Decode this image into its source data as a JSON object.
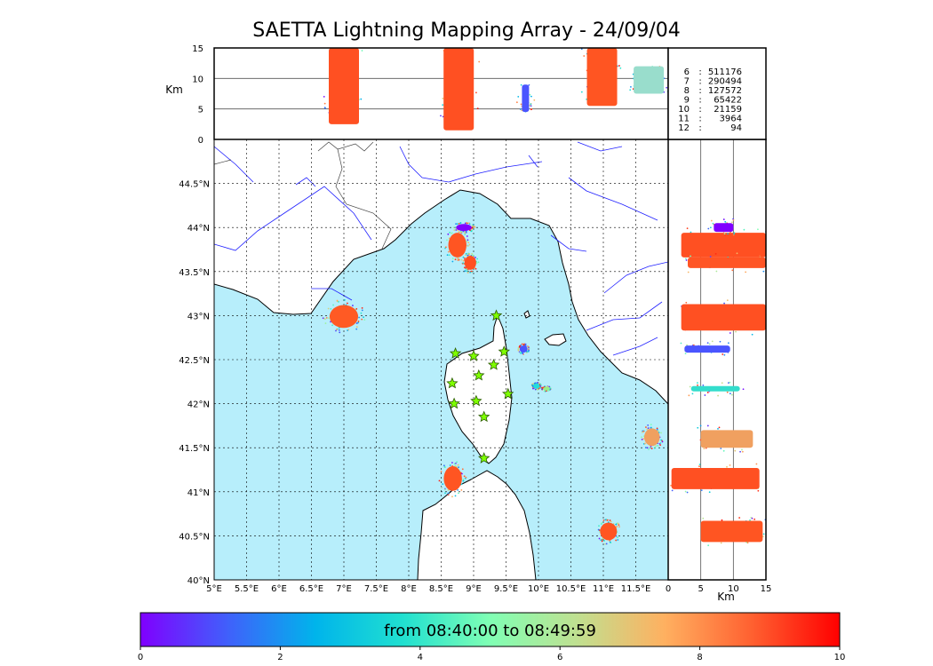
{
  "title": "SAETTA Lightning Mapping Array - 24/09/04",
  "colorbar_label": "from 08:40:00 to 08:49:59",
  "colors": {
    "sea": "#b7eefb",
    "land": "#ffffff",
    "rivers": "#2020ff",
    "stations": "#7fff00",
    "highlight_count": "#ff0000"
  },
  "chart_data": [
    {
      "type": "scatter",
      "panel": "plan view map",
      "xlim": [
        5.0,
        12.0
      ],
      "ylim": [
        40.0,
        45.0
      ],
      "x_ticks": [
        "5°E",
        "5.5°E",
        "6°E",
        "6.5°E",
        "7°E",
        "7.5°E",
        "8°E",
        "8.5°E",
        "9°E",
        "9.5°E",
        "10°E",
        "10.5°E",
        "11°E",
        "11.5°E"
      ],
      "y_ticks": [
        "40°N",
        "40.5°N",
        "41°N",
        "41.5°N",
        "42°N",
        "42.5°N",
        "43°N",
        "43.5°N",
        "44°N",
        "44.5°N"
      ],
      "grid": true,
      "stations": [
        {
          "lon": 9.35,
          "lat": 43.0
        },
        {
          "lon": 8.72,
          "lat": 42.57
        },
        {
          "lon": 9.0,
          "lat": 42.54
        },
        {
          "lon": 9.47,
          "lat": 42.59
        },
        {
          "lon": 9.31,
          "lat": 42.44
        },
        {
          "lon": 9.08,
          "lat": 42.32
        },
        {
          "lon": 8.67,
          "lat": 42.23
        },
        {
          "lon": 9.53,
          "lat": 42.11
        },
        {
          "lon": 9.04,
          "lat": 42.03
        },
        {
          "lon": 8.7,
          "lat": 42.0
        },
        {
          "lon": 9.16,
          "lat": 41.85
        },
        {
          "lon": 9.16,
          "lat": 41.38
        }
      ],
      "clusters": [
        {
          "lon": 8.75,
          "lat": 43.8,
          "rlon": 0.14,
          "rlat": 0.14,
          "color": "#ff5522",
          "time": 9.0
        },
        {
          "lon": 8.95,
          "lat": 43.6,
          "rlon": 0.09,
          "rlat": 0.08,
          "color": "#ff4f20",
          "time": 9.2
        },
        {
          "lon": 8.85,
          "lat": 44.0,
          "rlon": 0.12,
          "rlat": 0.04,
          "color": "#8000ff",
          "time": 0.3
        },
        {
          "lon": 7.0,
          "lat": 42.99,
          "rlon": 0.22,
          "rlat": 0.13,
          "color": "#ff5a24",
          "time": 8.8
        },
        {
          "lon": 8.68,
          "lat": 41.15,
          "rlon": 0.14,
          "rlat": 0.14,
          "color": "#ff5522",
          "time": 9.0
        },
        {
          "lon": 11.08,
          "lat": 40.55,
          "rlon": 0.13,
          "rlat": 0.1,
          "color": "#ff5522",
          "time": 9.1
        },
        {
          "lon": 11.75,
          "lat": 41.62,
          "rlon": 0.12,
          "rlat": 0.1,
          "color": "#f0a060",
          "time": 7.6
        },
        {
          "lon": 9.77,
          "lat": 42.62,
          "rlon": 0.06,
          "rlat": 0.04,
          "color": "#4a55ff",
          "time": 1.2
        },
        {
          "lon": 9.97,
          "lat": 42.2,
          "rlon": 0.05,
          "rlat": 0.03,
          "color": "#22dddd",
          "time": 3.5
        },
        {
          "lon": 10.12,
          "lat": 42.17,
          "rlon": 0.05,
          "rlat": 0.02,
          "color": "#99ee88",
          "time": 5.0
        }
      ]
    },
    {
      "type": "scatter",
      "panel": "longitude-altitude view",
      "xlim": [
        5.0,
        12.0
      ],
      "ylim": [
        0,
        15
      ],
      "ylabel": "Km",
      "y_ticks": [
        "0",
        "5",
        "10",
        "15"
      ],
      "gridlines_y": [
        5,
        10
      ],
      "columns": [
        {
          "lon": 7.0,
          "z0": 2.5,
          "z1": 15.0,
          "color": "#ff5022"
        },
        {
          "lon": 8.77,
          "z0": 1.5,
          "z1": 15.0,
          "color": "#ff5022"
        },
        {
          "lon": 9.8,
          "z0": 4.5,
          "z1": 9.0,
          "color": "#4a55ff"
        },
        {
          "lon": 10.98,
          "z0": 5.5,
          "z1": 15.0,
          "color": "#ff5522"
        },
        {
          "lon": 11.7,
          "z0": 7.5,
          "z1": 12.0,
          "color": "#99ddcc"
        }
      ]
    },
    {
      "type": "scatter",
      "panel": "altitude-latitude view",
      "xlim": [
        0,
        15
      ],
      "ylim": [
        40.0,
        45.0
      ],
      "xlabel": "Km",
      "x_ticks": [
        "0",
        "5",
        "10",
        "15"
      ],
      "gridlines_x": [
        5,
        10
      ],
      "bands": [
        {
          "lat": 43.8,
          "z0": 2,
          "z1": 15,
          "h": 0.14,
          "color": "#ff5022"
        },
        {
          "lat": 43.6,
          "z0": 3,
          "z1": 15,
          "h": 0.06,
          "color": "#ff5525"
        },
        {
          "lat": 44.0,
          "z0": 7,
          "z1": 10,
          "h": 0.05,
          "color": "#8000ff"
        },
        {
          "lat": 42.98,
          "z0": 2,
          "z1": 15,
          "h": 0.15,
          "color": "#ff5022"
        },
        {
          "lat": 42.62,
          "z0": 2.5,
          "z1": 9.5,
          "h": 0.04,
          "color": "#4a55ff"
        },
        {
          "lat": 42.17,
          "z0": 3.5,
          "z1": 11,
          "h": 0.03,
          "color": "#33ddcc"
        },
        {
          "lat": 41.6,
          "z0": 5,
          "z1": 13,
          "h": 0.1,
          "color": "#f0a060"
        },
        {
          "lat": 41.15,
          "z0": 0.5,
          "z1": 14,
          "h": 0.12,
          "color": "#ff5022"
        },
        {
          "lat": 40.55,
          "z0": 5,
          "z1": 14.5,
          "h": 0.12,
          "color": "#ff5522"
        }
      ]
    },
    {
      "type": "table",
      "panel": "station count",
      "rows": [
        {
          "stations": "6",
          "sep": ":",
          "count": "511176",
          "highlight": false
        },
        {
          "stations": "7",
          "sep": ":",
          "count": "290494",
          "highlight": true
        },
        {
          "stations": "8",
          "sep": ":",
          "count": "127572",
          "highlight": false
        },
        {
          "stations": "9",
          "sep": ":",
          "count": "65422",
          "highlight": false
        },
        {
          "stations": "10",
          "sep": ":",
          "count": "21159",
          "highlight": false
        },
        {
          "stations": "11",
          "sep": ":",
          "count": "3964",
          "highlight": false
        },
        {
          "stations": "12",
          "sep": ":",
          "count": "94",
          "highlight": false
        }
      ]
    },
    {
      "type": "colorbar",
      "range": [
        0,
        10
      ],
      "ticks": [
        "0",
        "2",
        "4",
        "6",
        "8",
        "10"
      ],
      "colormap": [
        "#8000ff",
        "#4060fb",
        "#00b4eb",
        "#20e0d0",
        "#80ffb4",
        "#c0e090",
        "#ffb060",
        "#ff6030",
        "#ff0000"
      ]
    }
  ]
}
